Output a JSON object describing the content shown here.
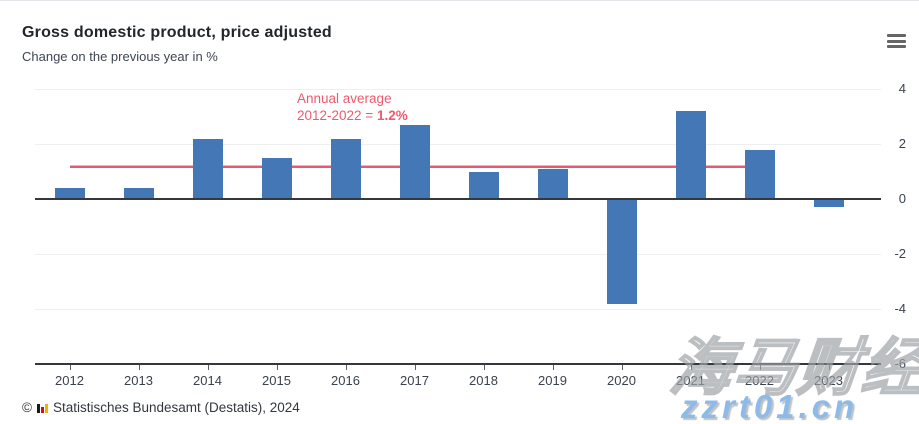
{
  "chart_data": {
    "type": "bar",
    "title": "Gross domestic product, price adjusted",
    "subtitle": "Change on the previous year in %",
    "categories": [
      "2012",
      "2013",
      "2014",
      "2015",
      "2016",
      "2017",
      "2018",
      "2019",
      "2020",
      "2021",
      "2022",
      "2023"
    ],
    "values": [
      0.4,
      0.4,
      2.2,
      1.5,
      2.2,
      2.7,
      1.0,
      1.1,
      -3.8,
      3.2,
      1.8,
      -0.3
    ],
    "ylim": [
      -6,
      4
    ],
    "yticks": [
      4,
      2,
      0,
      -2,
      -4,
      -6
    ],
    "grid": true,
    "legend": "none",
    "bar_color": "#4377b6",
    "axis_label_color": "#39424e",
    "average_line": {
      "value": 1.2,
      "from_category": "2012",
      "to_category": "2022",
      "color_core": "#e8586e",
      "color_edge": "#f7b0bb",
      "annotation_line1": "Annual average",
      "annotation_line2": "2012-2022 = ",
      "annotation_value": "1.2%",
      "annotation_color": "#ee5a6d"
    }
  },
  "icons": {
    "context_menu": "hamburger",
    "destatis_logo": "black-red-gold mini bar chart"
  },
  "footer": {
    "prefix": "©",
    "source": "Statistisches Bundesamt (Destatis), 2024"
  },
  "watermark": {
    "cjk_text": "海马财经",
    "url_text": "zzrt01.cn",
    "url_color": "#8cbbea"
  }
}
